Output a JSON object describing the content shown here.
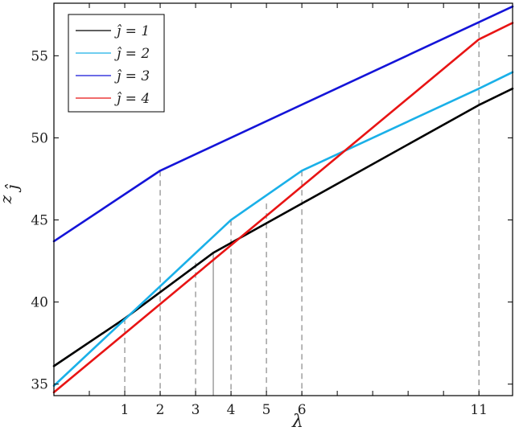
{
  "chart_data": {
    "type": "line",
    "xlabel": "λ",
    "ylabel": "z",
    "ylabel_sub": "ĵ",
    "xlim": [
      -1,
      11.95
    ],
    "ylim": [
      34.3,
      58.2
    ],
    "x_ticks": [
      1,
      2,
      3,
      4,
      5,
      6,
      11
    ],
    "y_ticks": [
      35,
      40,
      45,
      50,
      55
    ],
    "x_minor_ticks": [
      0,
      7,
      8,
      9,
      10
    ],
    "grid": false,
    "legend_placement": "top-left",
    "reference_lines": [
      {
        "x": 1,
        "y_top": 39,
        "style": "dashed"
      },
      {
        "x": 2,
        "y_top": 48,
        "style": "dashed"
      },
      {
        "x": 3,
        "y_top": 42.4,
        "style": "dashed"
      },
      {
        "x": 3.5,
        "y_top": 43.0,
        "style": "solid"
      },
      {
        "x": 4,
        "y_top": 45,
        "style": "dashed"
      },
      {
        "x": 5,
        "y_top": 46,
        "style": "dashed"
      },
      {
        "x": 6,
        "y_top": 48,
        "style": "dashed"
      },
      {
        "x": 11,
        "y_top": 58.2,
        "style": "dashed"
      }
    ],
    "series": [
      {
        "name": "ĵ = 1",
        "color": "#000000",
        "points": [
          [
            -1,
            36.1
          ],
          [
            1,
            39
          ],
          [
            3.5,
            43.0
          ],
          [
            11,
            52
          ],
          [
            11.95,
            53
          ]
        ]
      },
      {
        "name": "ĵ = 2",
        "color": "#1ab0e8",
        "points": [
          [
            -1,
            34.9
          ],
          [
            4,
            45
          ],
          [
            6,
            48
          ],
          [
            11,
            53
          ],
          [
            11.95,
            54
          ]
        ]
      },
      {
        "name": "ĵ = 3",
        "color": "#1414d8",
        "points": [
          [
            -1,
            43.7
          ],
          [
            2,
            48
          ],
          [
            11.95,
            58
          ]
        ]
      },
      {
        "name": "ĵ = 4",
        "color": "#e81414",
        "points": [
          [
            -1,
            34.5
          ],
          [
            11,
            56
          ],
          [
            11.95,
            57
          ]
        ]
      }
    ]
  }
}
